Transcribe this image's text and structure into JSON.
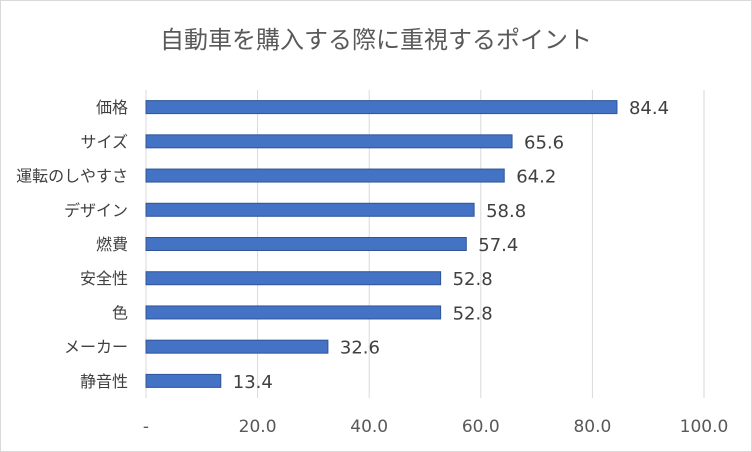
{
  "chart_data": {
    "type": "bar",
    "orientation": "horizontal",
    "title": "自動車を購入する際に重視するポイント",
    "categories": [
      "価格",
      "サイズ",
      "運転のしやすさ",
      "デザイン",
      "燃費",
      "安全性",
      "色",
      "メーカー",
      "静音性"
    ],
    "values": [
      84.4,
      65.6,
      64.2,
      58.8,
      57.4,
      52.8,
      52.8,
      32.6,
      13.4
    ],
    "value_labels": [
      "84.4",
      "65.6",
      "64.2",
      "58.8",
      "57.4",
      "52.8",
      "52.8",
      "32.6",
      "13.4"
    ],
    "xlim": [
      0,
      100
    ],
    "x_ticks": [
      0,
      20,
      40,
      60,
      80,
      100
    ],
    "x_tick_labels": [
      "-",
      "20.0",
      "40.0",
      "60.0",
      "80.0",
      "100.0"
    ],
    "grid": true,
    "colors": {
      "bar": "#4472c4",
      "bar_border": "#2f5597",
      "grid": "#d9d9d9",
      "text": "#404040"
    }
  }
}
